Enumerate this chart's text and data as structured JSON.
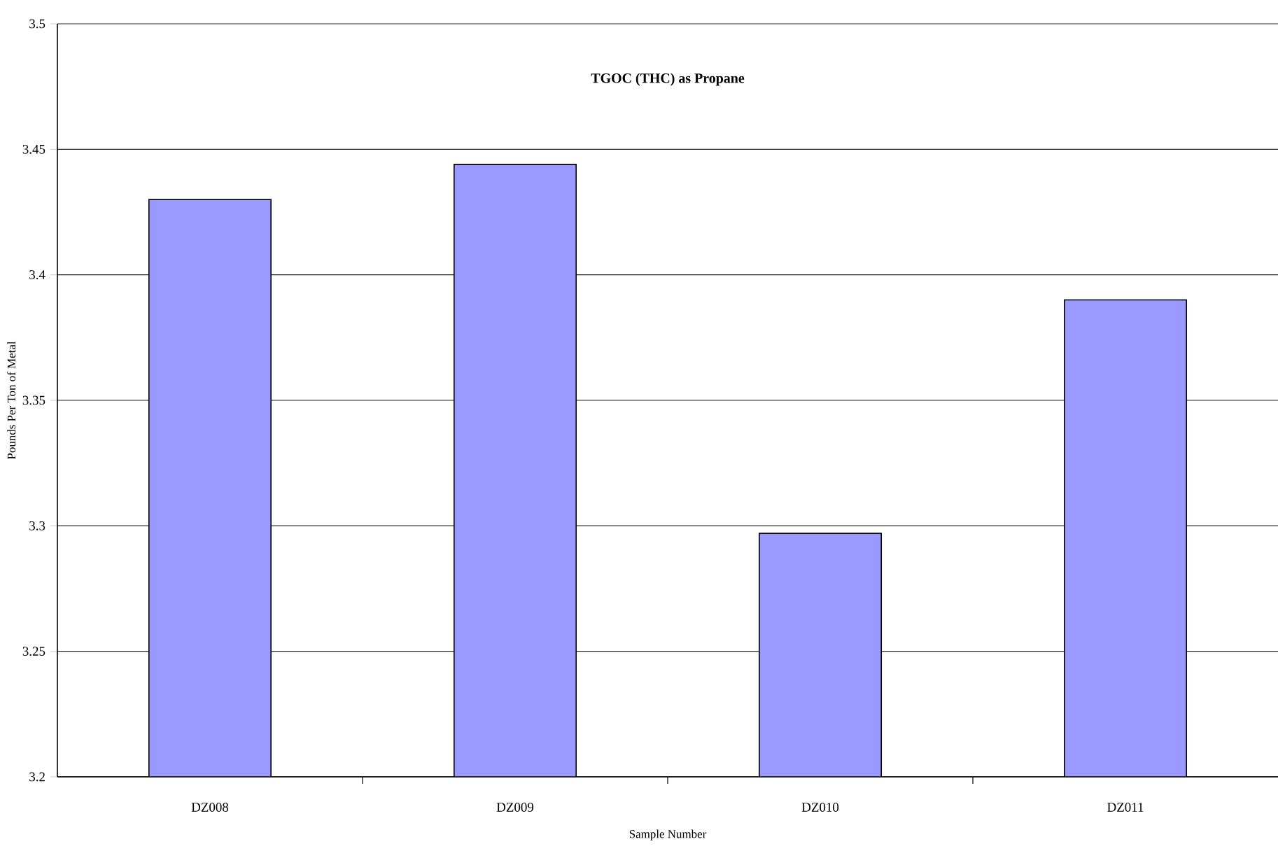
{
  "chart_data": {
    "type": "bar",
    "title": "TGOC (THC) as Propane",
    "xlabel": "Sample Number",
    "ylabel": "Pounds Per Ton of Metal",
    "categories": [
      "DZ008",
      "DZ009",
      "DZ010",
      "DZ011"
    ],
    "values": [
      3.43,
      3.444,
      3.297,
      3.39
    ],
    "color": "#9999ff",
    "ylim": [
      3.2,
      3.5
    ],
    "yticks": [
      3.2,
      3.25,
      3.3,
      3.35,
      3.4,
      3.45,
      3.5
    ],
    "grid": "y"
  }
}
